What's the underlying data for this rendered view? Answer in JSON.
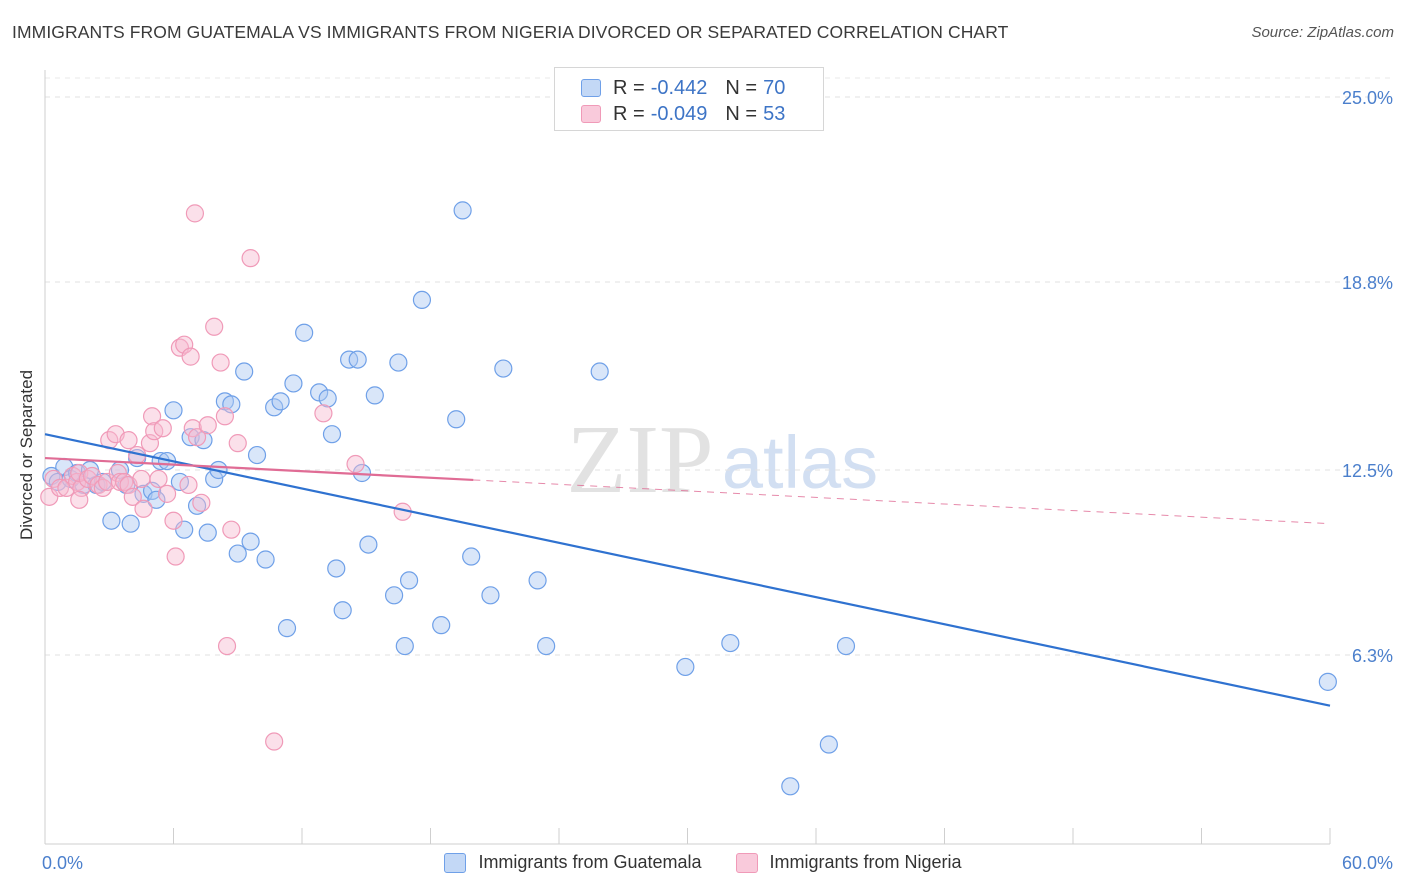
{
  "title": "IMMIGRANTS FROM GUATEMALA VS IMMIGRANTS FROM NIGERIA DIVORCED OR SEPARATED CORRELATION CHART",
  "source": "Source: ZipAtlas.com",
  "watermark": {
    "zip": "ZIP",
    "atlas": "atlas"
  },
  "legend_top": {
    "rows": [
      {
        "r_label": "R =",
        "r_value": "-0.442",
        "n_label": "N =",
        "n_value": "70"
      },
      {
        "r_label": "R =",
        "r_value": "-0.049",
        "n_label": "N =",
        "n_value": "53"
      }
    ]
  },
  "chart_data": {
    "type": "scatter",
    "xlabel": "",
    "ylabel": "Divorced or Separated",
    "xlim": [
      0,
      60
    ],
    "ylim": [
      0,
      26
    ],
    "x_tick_labels": [
      {
        "value": 0,
        "label": "0.0%"
      },
      {
        "value": 60,
        "label": "60.0%"
      }
    ],
    "y_tick_labels": [
      {
        "value": 25.0,
        "label": "25.0%"
      },
      {
        "value": 18.8,
        "label": "18.8%"
      },
      {
        "value": 12.5,
        "label": "12.5%"
      },
      {
        "value": 6.3,
        "label": "6.3%"
      }
    ],
    "legend_placement": "bottom",
    "grid": true,
    "series": [
      {
        "name": "Immigrants from Guatemala",
        "color": "#6fa0e8",
        "line_color": "#2f72d0",
        "r": -0.442,
        "n": 70,
        "trend": {
          "x": [
            0,
            60
          ],
          "y": [
            13.7,
            4.6
          ],
          "dashed_from": null
        },
        "points": [
          [
            0.3,
            12.3
          ],
          [
            0.6,
            12.1
          ],
          [
            0.9,
            12.6
          ],
          [
            1.2,
            12.2
          ],
          [
            1.5,
            12.4
          ],
          [
            1.8,
            12.0
          ],
          [
            2.1,
            12.5
          ],
          [
            2.4,
            12.0
          ],
          [
            2.7,
            12.1
          ],
          [
            3.1,
            10.8
          ],
          [
            3.5,
            12.5
          ],
          [
            3.8,
            12.0
          ],
          [
            4.0,
            10.7
          ],
          [
            4.3,
            12.9
          ],
          [
            4.6,
            11.7
          ],
          [
            5.0,
            11.8
          ],
          [
            5.2,
            11.5
          ],
          [
            5.4,
            12.8
          ],
          [
            5.7,
            12.8
          ],
          [
            6.0,
            14.5
          ],
          [
            6.3,
            12.1
          ],
          [
            6.5,
            10.5
          ],
          [
            6.8,
            13.6
          ],
          [
            7.1,
            11.3
          ],
          [
            7.4,
            13.5
          ],
          [
            7.6,
            10.4
          ],
          [
            7.9,
            12.2
          ],
          [
            8.1,
            12.5
          ],
          [
            8.4,
            14.8
          ],
          [
            8.7,
            14.7
          ],
          [
            9.0,
            9.7
          ],
          [
            9.3,
            15.8
          ],
          [
            9.6,
            10.1
          ],
          [
            9.9,
            13.0
          ],
          [
            10.3,
            9.5
          ],
          [
            10.7,
            14.6
          ],
          [
            11.0,
            14.8
          ],
          [
            11.3,
            7.2
          ],
          [
            11.6,
            15.4
          ],
          [
            12.1,
            17.1
          ],
          [
            12.8,
            15.1
          ],
          [
            13.2,
            14.9
          ],
          [
            13.4,
            13.7
          ],
          [
            13.6,
            9.2
          ],
          [
            13.9,
            7.8
          ],
          [
            14.2,
            16.2
          ],
          [
            14.6,
            16.2
          ],
          [
            14.8,
            12.4
          ],
          [
            15.1,
            10.0
          ],
          [
            15.4,
            15.0
          ],
          [
            16.3,
            8.3
          ],
          [
            16.5,
            16.1
          ],
          [
            16.8,
            6.6
          ],
          [
            17.0,
            8.8
          ],
          [
            17.6,
            18.2
          ],
          [
            18.5,
            7.3
          ],
          [
            19.2,
            14.2
          ],
          [
            19.5,
            21.2
          ],
          [
            19.9,
            9.6
          ],
          [
            20.8,
            8.3
          ],
          [
            21.4,
            15.9
          ],
          [
            23.0,
            8.8
          ],
          [
            23.4,
            6.6
          ],
          [
            25.9,
            15.8
          ],
          [
            29.9,
            5.9
          ],
          [
            32.0,
            6.7
          ],
          [
            34.8,
            1.9
          ],
          [
            36.6,
            3.3
          ],
          [
            37.4,
            6.6
          ],
          [
            59.9,
            5.4
          ]
        ]
      },
      {
        "name": "Immigrants from Nigeria",
        "color": "#f09ab8",
        "line_color": "#e06c95",
        "r": -0.049,
        "n": 53,
        "trend": {
          "x": [
            0,
            60
          ],
          "y": [
            12.9,
            10.7
          ],
          "dashed_from": 20
        },
        "points": [
          [
            0.2,
            11.6
          ],
          [
            0.4,
            12.2
          ],
          [
            0.7,
            11.9
          ],
          [
            1.0,
            11.9
          ],
          [
            1.3,
            12.3
          ],
          [
            1.5,
            12.1
          ],
          [
            1.7,
            11.9
          ],
          [
            1.6,
            12.4
          ],
          [
            1.6,
            11.5
          ],
          [
            2.0,
            12.2
          ],
          [
            2.2,
            12.3
          ],
          [
            2.5,
            12.0
          ],
          [
            2.7,
            11.9
          ],
          [
            2.9,
            12.1
          ],
          [
            3.0,
            13.5
          ],
          [
            3.3,
            13.7
          ],
          [
            3.4,
            12.4
          ],
          [
            3.5,
            12.1
          ],
          [
            3.7,
            12.1
          ],
          [
            3.9,
            13.5
          ],
          [
            3.9,
            12.0
          ],
          [
            4.1,
            11.6
          ],
          [
            4.3,
            13.0
          ],
          [
            4.5,
            12.2
          ],
          [
            4.6,
            11.2
          ],
          [
            4.9,
            13.4
          ],
          [
            5.0,
            14.3
          ],
          [
            5.1,
            13.8
          ],
          [
            5.3,
            12.2
          ],
          [
            5.5,
            13.9
          ],
          [
            5.7,
            11.7
          ],
          [
            6.0,
            10.8
          ],
          [
            6.1,
            9.6
          ],
          [
            6.3,
            16.6
          ],
          [
            6.5,
            16.7
          ],
          [
            6.7,
            12.0
          ],
          [
            6.8,
            16.3
          ],
          [
            6.9,
            13.9
          ],
          [
            7.0,
            21.1
          ],
          [
            7.1,
            13.6
          ],
          [
            7.3,
            11.4
          ],
          [
            7.6,
            14.0
          ],
          [
            7.9,
            17.3
          ],
          [
            8.2,
            16.1
          ],
          [
            8.4,
            14.3
          ],
          [
            8.5,
            6.6
          ],
          [
            8.7,
            10.5
          ],
          [
            9.0,
            13.4
          ],
          [
            9.6,
            19.6
          ],
          [
            10.7,
            3.4
          ],
          [
            13.0,
            14.4
          ],
          [
            14.5,
            12.7
          ],
          [
            16.7,
            11.1
          ]
        ]
      }
    ]
  }
}
